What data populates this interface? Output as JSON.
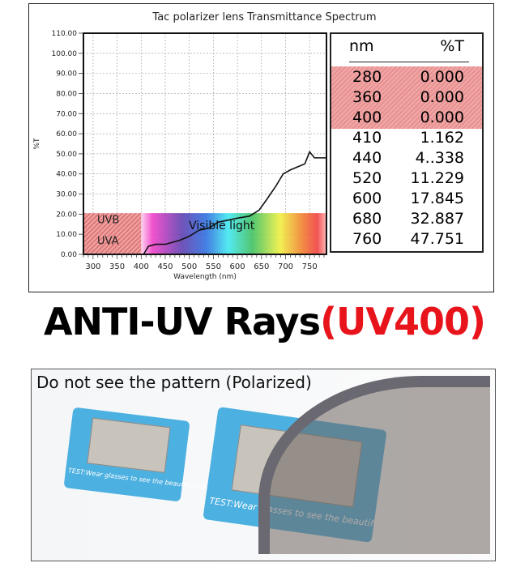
{
  "chart_data": {
    "type": "line",
    "title": "Tac polarizer lens Transmittance Spectrum",
    "xlabel": "Wavelength (nm)",
    "ylabel": "%T",
    "xlim": [
      280,
      785
    ],
    "ylim": [
      0,
      110
    ],
    "xticks": [
      "300",
      "350",
      "400",
      "450",
      "500",
      "550",
      "600",
      "650",
      "700",
      "750"
    ],
    "yticks": [
      "0.00",
      "10.00",
      "20.00",
      "30.00",
      "40.00",
      "50.00",
      "60.00",
      "70.00",
      "80.00",
      "90.00",
      "100.00",
      "110.00"
    ],
    "grid": true,
    "x": [
      405,
      415,
      430,
      450,
      480,
      500,
      520,
      540,
      560,
      600,
      625,
      645,
      660,
      680,
      695,
      710,
      730,
      740,
      750,
      760,
      770,
      785
    ],
    "y": [
      0,
      4,
      5,
      5,
      7,
      9,
      12,
      13,
      16,
      18,
      19,
      22,
      27,
      34,
      40,
      42,
      44,
      45,
      51,
      48,
      48,
      48
    ],
    "annotations": {
      "uvb": "UVB",
      "uva": "UVA",
      "visible": "Visible light"
    },
    "colors": {
      "uv_band": "#e89090",
      "line": "#111111"
    },
    "table": {
      "headers": [
        "nm",
        "%T"
      ],
      "rows": [
        [
          "280",
          "0.000"
        ],
        [
          "360",
          "0.000"
        ],
        [
          "400",
          "0.000"
        ],
        [
          "410",
          "1.162"
        ],
        [
          "440",
          "4..338"
        ],
        [
          "520",
          "11.229"
        ],
        [
          "600",
          "17.845"
        ],
        [
          "680",
          "32.887"
        ],
        [
          "760",
          "47.751"
        ]
      ]
    }
  },
  "heading": {
    "main": "ANTI-UV Rays",
    "highlight": "(UV400)",
    "highlight_color": "#e8141c"
  },
  "photo": {
    "caption": "Do not see the pattern (Polarized)",
    "card_text": "TEST:Wear glasses to see the beautiful pattern"
  }
}
